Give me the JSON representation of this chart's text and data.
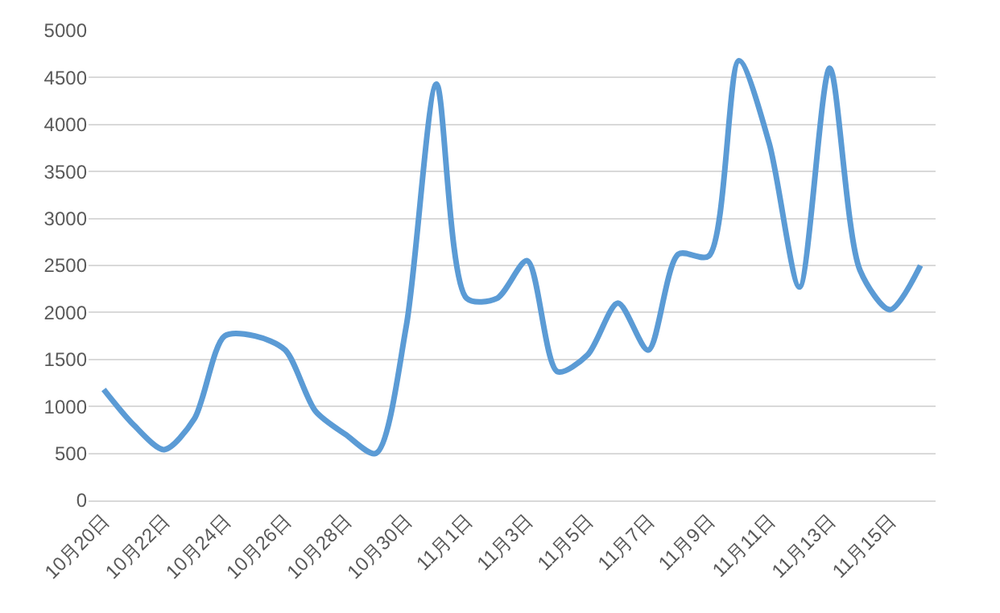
{
  "chart_data": {
    "type": "line",
    "categories": [
      "10月20日",
      null,
      "10月22日",
      null,
      "10月24日",
      null,
      "10月26日",
      null,
      "10月28日",
      null,
      "10月30日",
      null,
      "11月1日",
      null,
      "11月3日",
      null,
      "11月5日",
      null,
      "11月7日",
      null,
      "11月9日",
      null,
      "11月11日",
      null,
      "11月13日",
      null,
      "11月15日",
      null
    ],
    "series": [
      {
        "color": "#5b9bd5",
        "values": [
          1180,
          800,
          540,
          870,
          1750,
          1750,
          1600,
          950,
          700,
          500,
          1850,
          4430,
          2150,
          2150,
          2550,
          1370,
          1550,
          2100,
          1600,
          2620,
          2600,
          4680,
          3800,
          2270,
          4600,
          2450,
          2030,
          2500
        ]
      }
    ],
    "ylim": [
      0,
      5000
    ],
    "yticks": [
      0,
      500,
      1000,
      1500,
      2000,
      2500,
      3000,
      3500,
      4000,
      4500,
      5000
    ],
    "grid": "y",
    "marker": "none"
  }
}
